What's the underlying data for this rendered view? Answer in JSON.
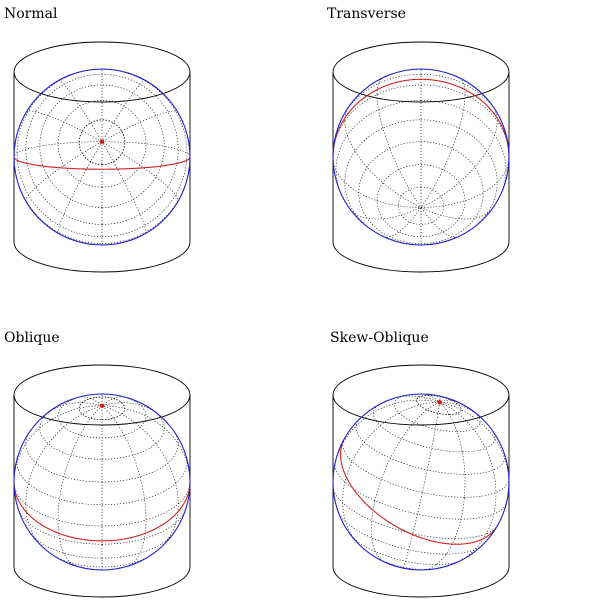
{
  "titles": {
    "normal": "Normal",
    "transverse": "Transverse",
    "oblique": "Oblique",
    "skew_oblique": "Skew-Oblique"
  },
  "colors": {
    "outline": "#000000",
    "sphere": "#2222cc",
    "contact_line": "#cc2222",
    "pole": "#cc2222"
  }
}
